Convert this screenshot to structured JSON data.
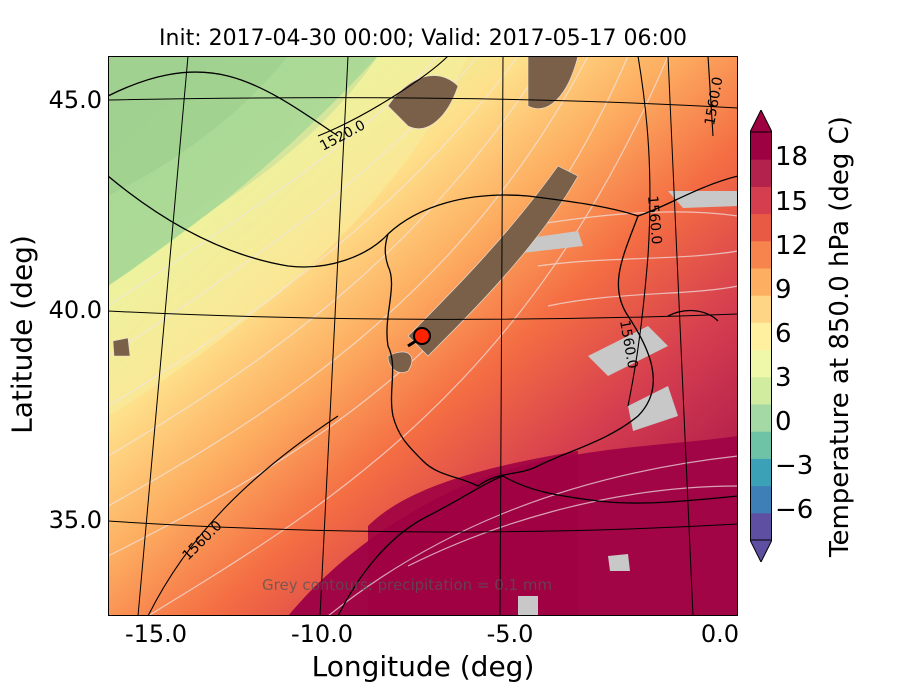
{
  "title": "Init: 2017-04-30 00:00; Valid: 2017-05-17 06:00",
  "axes": {
    "xlabel": "Longitude (deg)",
    "ylabel": "Latitude (deg)",
    "xticks": [
      "-15.0",
      "-10.0",
      "-5.0",
      "0.0"
    ],
    "yticks": [
      "45.0",
      "40.0",
      "35.0"
    ]
  },
  "colorbar": {
    "label": "Temperature at 850.0 hPa (deg C)",
    "ticks": [
      "18",
      "15",
      "12",
      "9",
      "6",
      "3",
      "0",
      "−3",
      "−6"
    ],
    "colors": [
      "#5e4fa2",
      "#3f7fb8",
      "#3ba1b6",
      "#6ec2a5",
      "#a4d8a4",
      "#d2ec9f",
      "#eef8a8",
      "#fff0a0",
      "#fdd585",
      "#fdae61",
      "#f7844d",
      "#e85a43",
      "#d53e4f",
      "#b3214d",
      "#9e0142"
    ]
  },
  "contour_labels": [
    "1520.0",
    "1560.0",
    "1560.0",
    "1560.0",
    "1560.0"
  ],
  "annotation": "Grey contours: precipitation = 0.1 mm",
  "marker": {
    "type": "red-circle-location-marker",
    "color": "#ff2200"
  }
}
